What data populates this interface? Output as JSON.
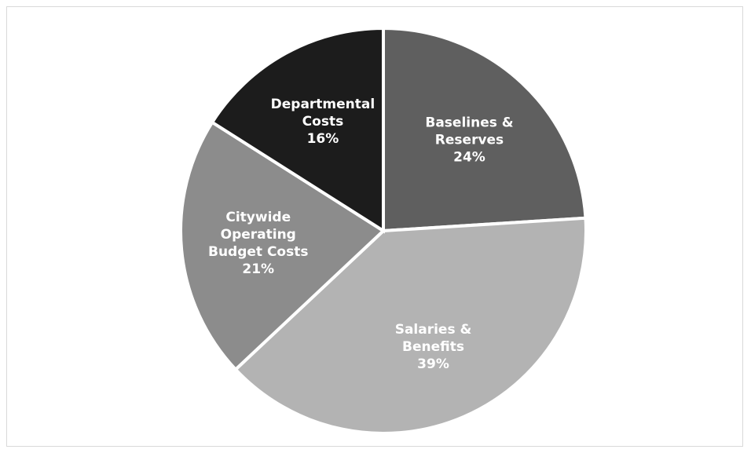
{
  "chart_data": {
    "type": "pie",
    "title": "",
    "slices": [
      {
        "label_lines": [
          "Baselines &",
          "Reserves"
        ],
        "value": 24,
        "value_label": "24%",
        "color": "#5f5f5f"
      },
      {
        "label_lines": [
          "Salaries &",
          "Benefits"
        ],
        "value": 39,
        "value_label": "39%",
        "color": "#b3b3b3"
      },
      {
        "label_lines": [
          "Citywide",
          "Operating",
          "Budget Costs"
        ],
        "value": 21,
        "value_label": "21%",
        "color": "#8c8c8c"
      },
      {
        "label_lines": [
          "Departmental",
          "Costs"
        ],
        "value": 16,
        "value_label": "16%",
        "color": "#1c1c1c"
      }
    ],
    "start_angle_deg": 0,
    "direction": "clockwise",
    "legend": "none"
  }
}
